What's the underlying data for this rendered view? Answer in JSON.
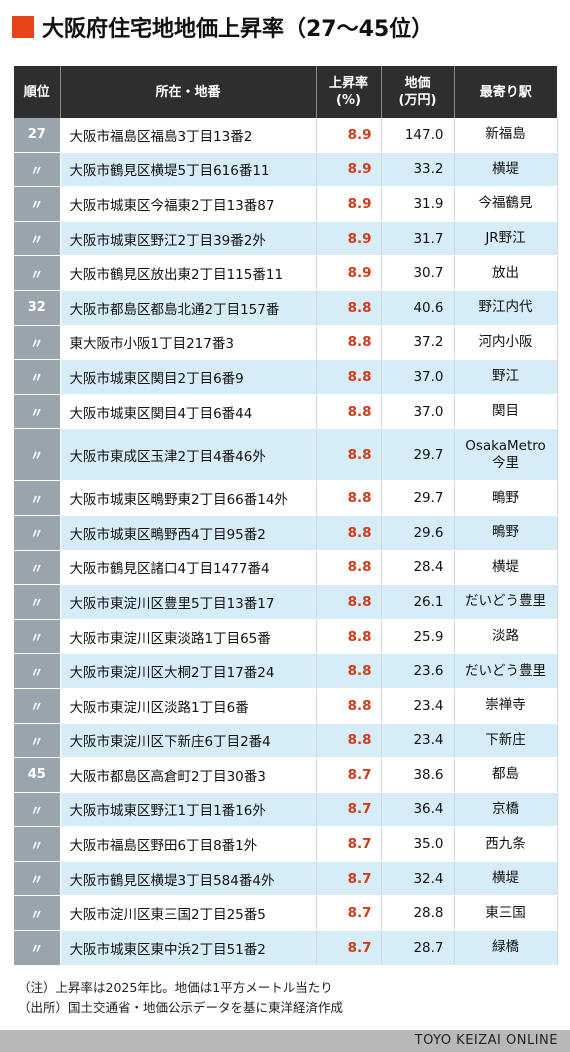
{
  "header": {
    "title": "大阪府住宅地地価上昇率（27〜45位）"
  },
  "chart_data": {
    "type": "table",
    "columns": [
      "順位",
      "所在・地番",
      "上昇率\n(%)",
      "地価\n(万円)",
      "最寄り駅"
    ],
    "rows": [
      {
        "rank": "27",
        "address": "大阪市福島区福島3丁目13番2",
        "rate": "8.9",
        "price": "147.0",
        "station": "新福島"
      },
      {
        "rank": "〃",
        "address": "大阪市鶴見区横堤5丁目616番11",
        "rate": "8.9",
        "price": "33.2",
        "station": "横堤"
      },
      {
        "rank": "〃",
        "address": "大阪市城東区今福東2丁目13番87",
        "rate": "8.9",
        "price": "31.9",
        "station": "今福鶴見"
      },
      {
        "rank": "〃",
        "address": "大阪市城東区野江2丁目39番2外",
        "rate": "8.9",
        "price": "31.7",
        "station": "JR野江"
      },
      {
        "rank": "〃",
        "address": "大阪市鶴見区放出東2丁目115番11",
        "rate": "8.9",
        "price": "30.7",
        "station": "放出"
      },
      {
        "rank": "32",
        "address": "大阪市都島区都島北通2丁目157番",
        "rate": "8.8",
        "price": "40.6",
        "station": "野江内代"
      },
      {
        "rank": "〃",
        "address": "東大阪市小阪1丁目217番3",
        "rate": "8.8",
        "price": "37.2",
        "station": "河内小阪"
      },
      {
        "rank": "〃",
        "address": "大阪市城東区関目2丁目6番9",
        "rate": "8.8",
        "price": "37.0",
        "station": "野江"
      },
      {
        "rank": "〃",
        "address": "大阪市城東区関目4丁目6番44",
        "rate": "8.8",
        "price": "37.0",
        "station": "関目"
      },
      {
        "rank": "〃",
        "address": "大阪市東成区玉津2丁目4番46外",
        "rate": "8.8",
        "price": "29.7",
        "station": "OsakaMetro\n今里"
      },
      {
        "rank": "〃",
        "address": "大阪市城東区鴫野東2丁目66番14外",
        "rate": "8.8",
        "price": "29.7",
        "station": "鴫野"
      },
      {
        "rank": "〃",
        "address": "大阪市城東区鴫野西4丁目95番2",
        "rate": "8.8",
        "price": "29.6",
        "station": "鴫野"
      },
      {
        "rank": "〃",
        "address": "大阪市鶴見区諸口4丁目1477番4",
        "rate": "8.8",
        "price": "28.4",
        "station": "横堤"
      },
      {
        "rank": "〃",
        "address": "大阪市東淀川区豊里5丁目13番17",
        "rate": "8.8",
        "price": "26.1",
        "station": "だいどう豊里"
      },
      {
        "rank": "〃",
        "address": "大阪市東淀川区東淡路1丁目65番",
        "rate": "8.8",
        "price": "25.9",
        "station": "淡路"
      },
      {
        "rank": "〃",
        "address": "大阪市東淀川区大桐2丁目17番24",
        "rate": "8.8",
        "price": "23.6",
        "station": "だいどう豊里"
      },
      {
        "rank": "〃",
        "address": "大阪市東淀川区淡路1丁目6番",
        "rate": "8.8",
        "price": "23.4",
        "station": "崇禅寺"
      },
      {
        "rank": "〃",
        "address": "大阪市東淀川区下新庄6丁目2番4",
        "rate": "8.8",
        "price": "23.4",
        "station": "下新庄"
      },
      {
        "rank": "45",
        "address": "大阪市都島区高倉町2丁目30番3",
        "rate": "8.7",
        "price": "38.6",
        "station": "都島"
      },
      {
        "rank": "〃",
        "address": "大阪市城東区野江1丁目1番16外",
        "rate": "8.7",
        "price": "36.4",
        "station": "京橋"
      },
      {
        "rank": "〃",
        "address": "大阪市福島区野田6丁目8番1外",
        "rate": "8.7",
        "price": "35.0",
        "station": "西九条"
      },
      {
        "rank": "〃",
        "address": "大阪市鶴見区横堤3丁目584番4外",
        "rate": "8.7",
        "price": "32.4",
        "station": "横堤"
      },
      {
        "rank": "〃",
        "address": "大阪市淀川区東三国2丁目25番5",
        "rate": "8.7",
        "price": "28.8",
        "station": "東三国"
      },
      {
        "rank": "〃",
        "address": "大阪市城東区東中浜2丁目51番2",
        "rate": "8.7",
        "price": "28.7",
        "station": "緑橋"
      }
    ]
  },
  "notes": [
    "（注）上昇率は2025年比。地価は1平方メートル当たり",
    "（出所）国土交通省・地価公示データを基に東洋経済作成"
  ],
  "footer": {
    "credit": "TOYO KEIZAI ONLINE"
  },
  "colors": {
    "accent": "#e8431b",
    "rate": "#d23b1a",
    "header_bg": "#2e2e2e",
    "stripe": "#d6ecf7",
    "rank_bg": "#9aa4ad"
  }
}
